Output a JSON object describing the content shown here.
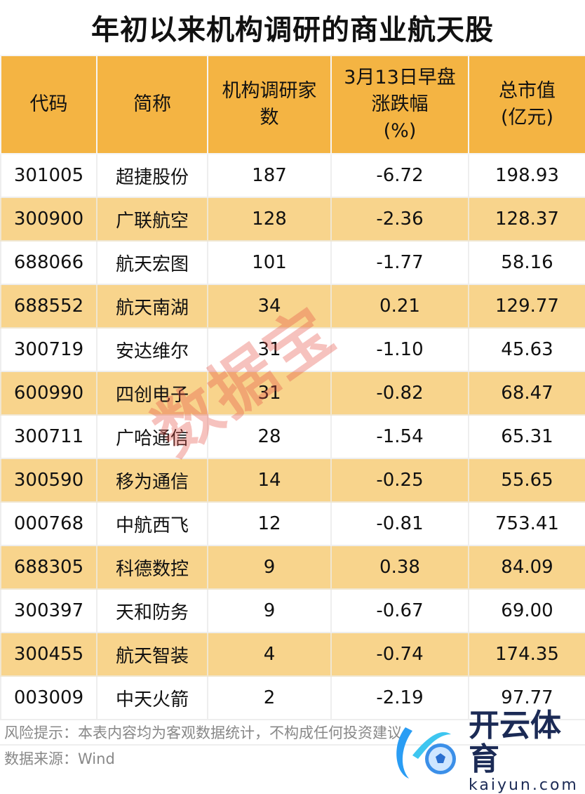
{
  "title": "年初以来机构调研的商业航天股",
  "headers": [
    "代码",
    "简称",
    "机构调研家数",
    "3月13日早盘涨跌幅(%)",
    "总市值(亿元)"
  ],
  "header_lines": [
    [
      "代码"
    ],
    [
      "简称"
    ],
    [
      "机构调研家",
      "数"
    ],
    [
      "3月13日早盘",
      "涨跌幅",
      "(%)"
    ],
    [
      "总市值",
      "(亿元)"
    ]
  ],
  "rows": [
    [
      "301005",
      "超捷股份",
      "187",
      "-6.72",
      "198.93"
    ],
    [
      "300900",
      "广联航空",
      "128",
      "-2.36",
      "128.37"
    ],
    [
      "688066",
      "航天宏图",
      "101",
      "-1.77",
      "58.16"
    ],
    [
      "688552",
      "航天南湖",
      "34",
      "0.21",
      "129.77"
    ],
    [
      "300719",
      "安达维尔",
      "31",
      "-1.10",
      "45.63"
    ],
    [
      "600990",
      "四创电子",
      "31",
      "-0.82",
      "68.47"
    ],
    [
      "300711",
      "广哈通信",
      "28",
      "-1.54",
      "65.31"
    ],
    [
      "300590",
      "移为通信",
      "14",
      "-0.25",
      "55.65"
    ],
    [
      "000768",
      "中航西飞",
      "12",
      "-0.81",
      "753.41"
    ],
    [
      "688305",
      "科德数控",
      "9",
      "0.38",
      "84.09"
    ],
    [
      "300397",
      "天和防务",
      "9",
      "-0.67",
      "69.00"
    ],
    [
      "300455",
      "航天智装",
      "4",
      "-0.74",
      "174.35"
    ],
    [
      "003009",
      "中天火箭",
      "2",
      "-2.19",
      "97.77"
    ]
  ],
  "footer": {
    "risk": "风险提示：本表内容均为客观数据统计，不构成任何投资建议。",
    "source": "数据来源：Wind"
  },
  "watermark": "数据宝",
  "logo": {
    "cn": "开云体育",
    "en": "kaiyun.com"
  },
  "colors": {
    "header": "#F4B443",
    "alt_row": "#F8D48C"
  }
}
